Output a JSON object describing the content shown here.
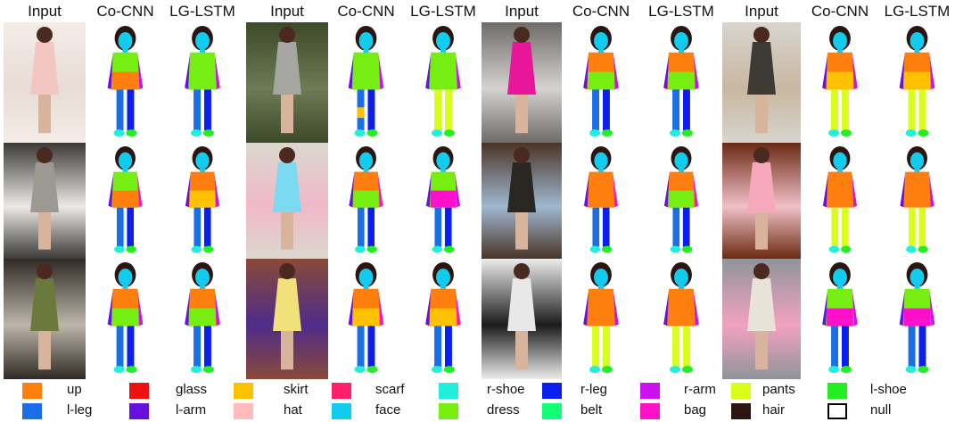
{
  "headers": [
    "Input",
    "Co-CNN",
    "LG-LSTM",
    "Input",
    "Co-CNN",
    "LG-LSTM",
    "Input",
    "Co-CNN",
    "LG-LSTM",
    "Input",
    "Co-CNN",
    "LG-LSTM"
  ],
  "colors": {
    "up": "#ff7f0e",
    "glass": "#ee1111",
    "skirt": "#ffc000",
    "scarf": "#ff1f6b",
    "r_shoe": "#22eedd",
    "r_leg": "#0a1ef0",
    "r_arm": "#cc11ee",
    "pants": "#d8ff1a",
    "l_shoe": "#22ee22",
    "l_leg": "#1a6ee8",
    "l_arm": "#6611dd",
    "hat": "#ffbbbb",
    "face": "#11ccee",
    "dress": "#77ee11",
    "belt": "#11ff77",
    "bag": "#ff11cc",
    "hair": "#2b1510",
    "null": "#ffffff"
  },
  "legend": [
    [
      {
        "name": "up",
        "color": "#ff7f0e"
      },
      {
        "name": "glass",
        "color": "#ee1111"
      },
      {
        "name": "skirt",
        "color": "#ffc000"
      },
      {
        "name": "scarf",
        "color": "#ff1f6b"
      },
      {
        "name": "r-shoe",
        "color": "#22eedd"
      },
      {
        "name": "r-leg",
        "color": "#0a1ef0"
      },
      {
        "name": "r-arm",
        "color": "#cc11ee"
      },
      {
        "name": "pants",
        "color": "#d8ff1a"
      },
      {
        "name": "l-shoe",
        "color": "#22ee22"
      }
    ],
    [
      {
        "name": "l-leg",
        "color": "#1a6ee8"
      },
      {
        "name": "l-arm",
        "color": "#6611dd"
      },
      {
        "name": "hat",
        "color": "#ffbbbb"
      },
      {
        "name": "face",
        "color": "#11ccee"
      },
      {
        "name": "dress",
        "color": "#77ee11"
      },
      {
        "name": "belt",
        "color": "#11ff77"
      },
      {
        "name": "bag",
        "color": "#ff11cc"
      },
      {
        "name": "hair",
        "color": "#2b1510"
      },
      {
        "name": "null",
        "color": "#ffffff"
      }
    ]
  ],
  "grid": [
    [
      {
        "photo": [
          "#f4ece8",
          "#e8dcd6",
          "#f2c7c2"
        ],
        "co": {
          "top": "dress",
          "bottom": "l_leg",
          "mid": "up",
          "arm": "r_arm"
        },
        "lg": {
          "top": "dress",
          "bottom": "l_leg",
          "arm": "r_arm"
        }
      },
      {
        "photo": [
          "#3c4a2a",
          "#6e7b55",
          "#a5a5a2"
        ],
        "co": {
          "top": "dress",
          "bottom": "l_leg",
          "arm": "r_arm",
          "legmix": "skirt"
        },
        "lg": {
          "top": "dress",
          "bottom": "pants",
          "arm": "r_arm"
        }
      },
      {
        "photo": [
          "#6e6b68",
          "#d5d2cf",
          "#e8169b"
        ],
        "co": {
          "top": "up",
          "bottom": "l_leg",
          "mid": "dress",
          "arm": "r_arm"
        },
        "lg": {
          "top": "up",
          "bottom": "l_leg",
          "mid": "dress",
          "arm": "r_arm"
        }
      },
      {
        "photo": [
          "#d8d4cf",
          "#c8b7a0",
          "#3e3a34"
        ],
        "co": {
          "top": "up",
          "bottom": "pants",
          "mid": "skirt",
          "arm": "r_arm"
        },
        "lg": {
          "top": "up",
          "bottom": "pants",
          "mid": "skirt",
          "arm": "r_arm"
        }
      }
    ],
    [
      {
        "photo": [
          "#3b3a37",
          "#ece9e6",
          "#9c9892"
        ],
        "co": {
          "top": "dress",
          "bottom": "l_leg",
          "mid": "up",
          "arm": "bag"
        },
        "lg": {
          "top": "up",
          "bottom": "l_leg",
          "mid": "skirt",
          "arm": "r_arm"
        }
      },
      {
        "photo": [
          "#dad8cf",
          "#f2b8c8",
          "#7bd9f0"
        ],
        "co": {
          "top": "up",
          "bottom": "l_leg",
          "mid": "dress",
          "arm": "bag"
        },
        "lg": {
          "top": "dress",
          "bottom": "l_leg",
          "mid": "bag",
          "arm": "r_arm"
        }
      },
      {
        "photo": [
          "#4a3428",
          "#9fb8cf",
          "#2a2622"
        ],
        "co": {
          "top": "up",
          "bottom": "l_leg",
          "arm": "bag"
        },
        "lg": {
          "top": "up",
          "bottom": "l_leg",
          "mid": "dress",
          "arm": "bag"
        }
      },
      {
        "photo": [
          "#6a2a14",
          "#f2c0c8",
          "#f7a8bb"
        ],
        "co": {
          "top": "up",
          "bottom": "pants",
          "arm": "r_arm"
        },
        "lg": {
          "top": "up",
          "bottom": "pants",
          "arm": "r_arm"
        }
      }
    ],
    [
      {
        "photo": [
          "#2f2a26",
          "#bcb5a8",
          "#6b7a3c"
        ],
        "co": {
          "top": "up",
          "bottom": "l_leg",
          "mid": "dress",
          "arm": "r_arm"
        },
        "lg": {
          "top": "up",
          "bottom": "l_leg",
          "mid": "dress",
          "arm": "r_arm"
        }
      },
      {
        "photo": [
          "#8a4a38",
          "#4f2c8a",
          "#f2e07a"
        ],
        "co": {
          "top": "up",
          "bottom": "l_leg",
          "mid": "skirt",
          "arm": "bag"
        },
        "lg": {
          "top": "up",
          "bottom": "l_leg",
          "mid": "skirt",
          "arm": "bag"
        }
      },
      {
        "photo": [
          "#ececec",
          "#1b1b1b",
          "#e8e8e8"
        ],
        "co": {
          "top": "up",
          "bottom": "pants",
          "arm": "r_arm"
        },
        "lg": {
          "top": "up",
          "bottom": "pants",
          "arm": "r_arm"
        }
      },
      {
        "photo": [
          "#8f949a",
          "#f2a2c0",
          "#e8e2d8"
        ],
        "co": {
          "top": "dress",
          "bottom": "l_leg",
          "mid": "bag",
          "arm": "r_arm"
        },
        "lg": {
          "top": "dress",
          "bottom": "l_leg",
          "mid": "bag",
          "arm": "r_arm"
        }
      }
    ]
  ]
}
